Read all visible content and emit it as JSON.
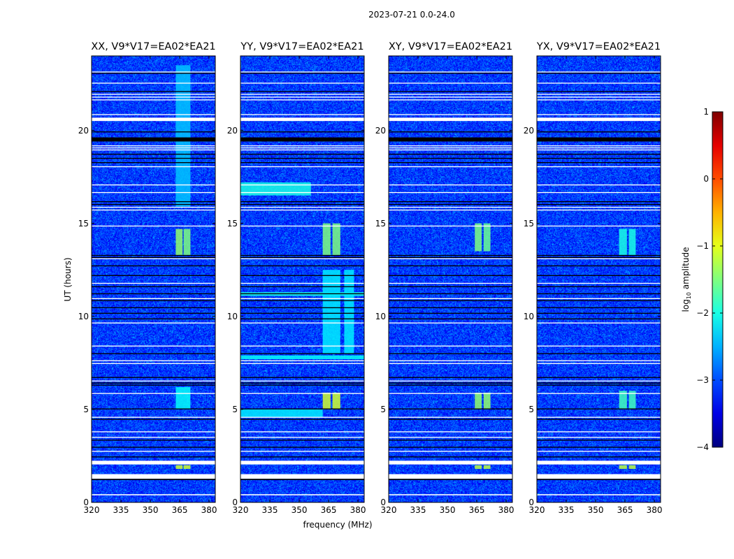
{
  "figure": {
    "suptitle": "2023-07-21 0.0-24.0",
    "xlabel": "frequency (MHz)",
    "ylabel": "UT (hours)",
    "colorbar_label_main": "log",
    "colorbar_label_sub": "10",
    "colorbar_label_tail": " amplitude"
  },
  "chart_data": {
    "type": "heatmap",
    "title": "2023-07-21 0.0-24.0",
    "xlabel": "frequency (MHz)",
    "ylabel": "UT (hours)",
    "xlim": [
      320,
      383.2
    ],
    "ylim": [
      0,
      24
    ],
    "xticks": [
      320,
      335,
      350,
      365,
      380
    ],
    "yticks": [
      0,
      5,
      10,
      15,
      20
    ],
    "colorbar": {
      "label": "log10 amplitude",
      "range": [
        -4,
        1
      ],
      "ticks": [
        -4,
        -3,
        -2,
        -1,
        0,
        1
      ],
      "colormap": "jet"
    },
    "background_log_amp": -3.1,
    "panels": [
      {
        "title": "XX, V9*V17=EA02*EA21"
      },
      {
        "title": "YY, V9*V17=EA02*EA21"
      },
      {
        "title": "XY, V9*V17=EA02*EA21"
      },
      {
        "title": "YX, V9*V17=EA02*EA21"
      }
    ],
    "flagged_rows_ut": [
      [
        0.38,
        0.44
      ],
      [
        1.27,
        1.52
      ],
      [
        2.04,
        2.24
      ],
      [
        2.72,
        2.77
      ],
      [
        3.47,
        3.52
      ],
      [
        3.77,
        3.82
      ],
      [
        4.55,
        4.6
      ],
      [
        5.83,
        5.88
      ],
      [
        6.5,
        6.55
      ],
      [
        7.44,
        7.49
      ],
      [
        7.59,
        7.64
      ],
      [
        8.38,
        8.43
      ],
      [
        9.62,
        9.67
      ],
      [
        10.93,
        10.98
      ],
      [
        11.75,
        11.8
      ],
      [
        13.07,
        13.12
      ],
      [
        14.83,
        14.88
      ],
      [
        15.69,
        15.74
      ],
      [
        15.84,
        15.89
      ],
      [
        16.63,
        16.68
      ],
      [
        17.04,
        17.09
      ],
      [
        18.02,
        18.07
      ],
      [
        18.92,
        18.97
      ],
      [
        19.03,
        19.08
      ],
      [
        19.14,
        19.19
      ],
      [
        20.5,
        20.68
      ],
      [
        20.82,
        20.87
      ],
      [
        21.61,
        21.66
      ],
      [
        21.76,
        21.81
      ],
      [
        21.91,
        21.96
      ],
      [
        22.51,
        22.56
      ],
      [
        23.11,
        23.16
      ]
    ],
    "zero_rows_ut": [
      [
        1.2,
        1.27
      ],
      [
        2.42,
        2.47
      ],
      [
        2.94,
        2.99
      ],
      [
        3.32,
        3.37
      ],
      [
        4.44,
        4.49
      ],
      [
        5.0,
        5.05
      ],
      [
        6.28,
        6.33
      ],
      [
        6.39,
        6.44
      ],
      [
        6.69,
        6.74
      ],
      [
        7.97,
        8.02
      ],
      [
        9.84,
        9.89
      ],
      [
        10.14,
        10.19
      ],
      [
        10.44,
        10.49
      ],
      [
        10.82,
        10.87
      ],
      [
        11.19,
        11.24
      ],
      [
        11.57,
        11.62
      ],
      [
        12.17,
        12.22
      ],
      [
        12.69,
        12.74
      ],
      [
        13.14,
        13.19
      ],
      [
        13.25,
        13.3
      ],
      [
        15.99,
        16.04
      ],
      [
        16.14,
        16.19
      ],
      [
        18.24,
        18.29
      ],
      [
        18.47,
        18.52
      ],
      [
        18.69,
        18.74
      ],
      [
        19.4,
        19.62
      ],
      [
        19.89,
        19.94
      ],
      [
        22.06,
        22.11
      ],
      [
        23.04,
        23.09
      ]
    ],
    "features": [
      {
        "panel": 0,
        "freq": [
          363,
          366.5
        ],
        "ut": [
          13.3,
          14.7
        ],
        "log_amp": -1.4
      },
      {
        "panel": 0,
        "freq": [
          367,
          370.5
        ],
        "ut": [
          13.3,
          14.7
        ],
        "log_amp": -1.5
      },
      {
        "panel": 0,
        "freq": [
          363,
          366.5
        ],
        "ut": [
          1.8,
          2.0
        ],
        "log_amp": -1.1
      },
      {
        "panel": 0,
        "freq": [
          367,
          370.5
        ],
        "ut": [
          1.8,
          2.0
        ],
        "log_amp": -1.1
      },
      {
        "panel": 0,
        "freq": [
          363,
          370.5
        ],
        "ut": [
          5.0,
          6.2
        ],
        "log_amp": -2.1
      },
      {
        "panel": 0,
        "freq": [
          363,
          370.5
        ],
        "ut": [
          15.9,
          23.5
        ],
        "log_amp": -2.4
      },
      {
        "panel": 1,
        "freq": [
          362,
          366
        ],
        "ut": [
          13.3,
          15
        ],
        "log_amp": -1.5
      },
      {
        "panel": 1,
        "freq": [
          367,
          371
        ],
        "ut": [
          13.3,
          15
        ],
        "log_amp": -1.5
      },
      {
        "panel": 1,
        "freq": [
          362,
          366
        ],
        "ut": [
          5.0,
          5.9
        ],
        "log_amp": -1.1
      },
      {
        "panel": 1,
        "freq": [
          367,
          371
        ],
        "ut": [
          5.0,
          5.9
        ],
        "log_amp": -1.1
      },
      {
        "panel": 1,
        "freq": [
          320,
          356
        ],
        "ut": [
          16.5,
          17.2
        ],
        "log_amp": -2.0
      },
      {
        "panel": 1,
        "freq": [
          320,
          362
        ],
        "ut": [
          4.6,
          5.0
        ],
        "log_amp": -2.2
      },
      {
        "panel": 1,
        "freq": [
          320,
          383
        ],
        "ut": [
          11.1,
          11.3
        ],
        "log_amp": -2.0
      },
      {
        "panel": 1,
        "freq": [
          320,
          383
        ],
        "ut": [
          7.7,
          7.9
        ],
        "log_amp": -2.1
      },
      {
        "panel": 1,
        "freq": [
          362,
          371
        ],
        "ut": [
          8,
          12.5
        ],
        "log_amp": -2.2
      },
      {
        "panel": 1,
        "freq": [
          373,
          378
        ],
        "ut": [
          8,
          12.5
        ],
        "log_amp": -2.2
      },
      {
        "panel": 2,
        "freq": [
          364,
          367.5
        ],
        "ut": [
          13.5,
          15
        ],
        "log_amp": -1.5
      },
      {
        "panel": 2,
        "freq": [
          368.5,
          372
        ],
        "ut": [
          13.5,
          15
        ],
        "log_amp": -1.6
      },
      {
        "panel": 2,
        "freq": [
          364,
          367.5
        ],
        "ut": [
          5.0,
          5.9
        ],
        "log_amp": -1.4
      },
      {
        "panel": 2,
        "freq": [
          368.5,
          372
        ],
        "ut": [
          5.0,
          5.9
        ],
        "log_amp": -1.4
      },
      {
        "panel": 2,
        "freq": [
          364,
          367.5
        ],
        "ut": [
          1.8,
          2.0
        ],
        "log_amp": -1.2
      },
      {
        "panel": 2,
        "freq": [
          368.5,
          372
        ],
        "ut": [
          1.8,
          2.0
        ],
        "log_amp": -1.2
      },
      {
        "panel": 3,
        "freq": [
          362,
          366
        ],
        "ut": [
          13.3,
          14.7
        ],
        "log_amp": -2.0
      },
      {
        "panel": 3,
        "freq": [
          367,
          370.5
        ],
        "ut": [
          13.3,
          14.7
        ],
        "log_amp": -2.0
      },
      {
        "panel": 3,
        "freq": [
          362,
          366
        ],
        "ut": [
          5.0,
          6.0
        ],
        "log_amp": -1.8
      },
      {
        "panel": 3,
        "freq": [
          367,
          370.5
        ],
        "ut": [
          5.0,
          6.0
        ],
        "log_amp": -1.8
      },
      {
        "panel": 3,
        "freq": [
          362,
          366
        ],
        "ut": [
          1.8,
          2.0
        ],
        "log_amp": -1.2
      },
      {
        "panel": 3,
        "freq": [
          367,
          370.5
        ],
        "ut": [
          1.8,
          2.0
        ],
        "log_amp": -1.2
      }
    ]
  }
}
